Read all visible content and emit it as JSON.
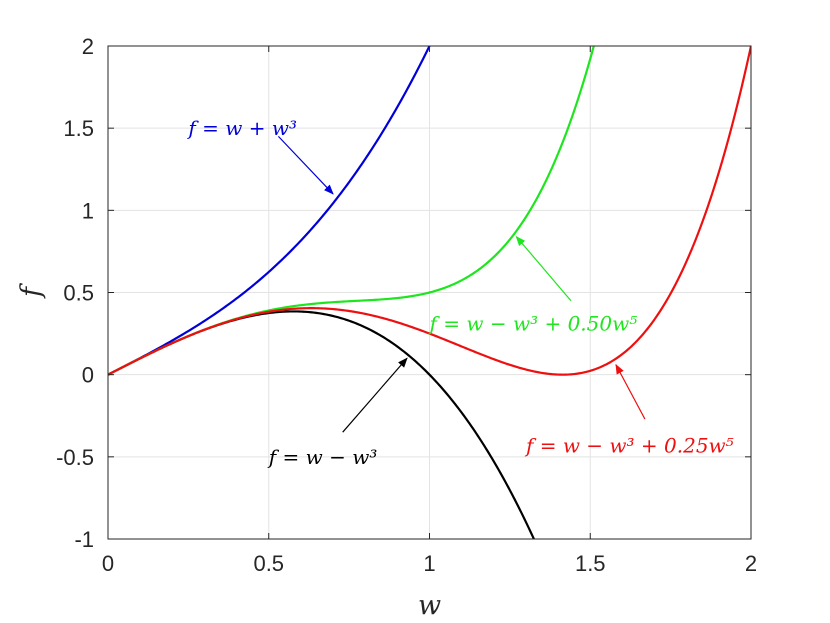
{
  "chart_data": {
    "type": "line",
    "xlabel": "w",
    "ylabel": "f",
    "xlim": [
      0,
      2
    ],
    "ylim": [
      -1,
      2
    ],
    "xticks": [
      0,
      0.5,
      1,
      1.5,
      2
    ],
    "yticks": [
      -1,
      -0.5,
      0,
      0.5,
      1,
      1.5,
      2
    ],
    "xtick_labels": [
      "0",
      "0.5",
      "1",
      "1.5",
      "2"
    ],
    "ytick_labels": [
      "-1",
      "-0.5",
      "0",
      "0.5",
      "1",
      "1.5",
      "2"
    ],
    "grid": true,
    "series": [
      {
        "key": "cubic-plus",
        "formula": "f = w + w³",
        "coef3": 1,
        "coef5": 0,
        "color": "#0000d8"
      },
      {
        "key": "cubic-minus",
        "formula": "f = w − w³",
        "coef3": -1,
        "coef5": 0,
        "color": "#000000"
      },
      {
        "key": "quintic-050",
        "formula": "f = w − w³ + 0.50w⁵",
        "coef3": -1,
        "coef5": 0.5,
        "color": "#1ee61e"
      },
      {
        "key": "quintic-025",
        "formula": "f = w − w³ + 0.25w⁵",
        "coef3": -1,
        "coef5": 0.25,
        "color": "#ee1010"
      }
    ],
    "annotations": [
      {
        "series": "cubic-plus",
        "label_x": 0.25,
        "label_y": 1.5,
        "arrow_from": [
          0.53,
          1.45
        ],
        "arrow_to": [
          0.7,
          1.1
        ]
      },
      {
        "series": "quintic-050",
        "label_x": 1.0,
        "label_y": 0.31,
        "arrow_from": [
          1.44,
          0.45
        ],
        "arrow_to": [
          1.27,
          0.84
        ]
      },
      {
        "series": "cubic-minus",
        "label_x": 0.5,
        "label_y": -0.5,
        "arrow_from": [
          0.73,
          -0.35
        ],
        "arrow_to": [
          0.93,
          0.1
        ]
      },
      {
        "series": "quintic-025",
        "label_x": 1.3,
        "label_y": -0.43,
        "arrow_from": [
          1.67,
          -0.27
        ],
        "arrow_to": [
          1.58,
          0.06
        ]
      }
    ]
  }
}
